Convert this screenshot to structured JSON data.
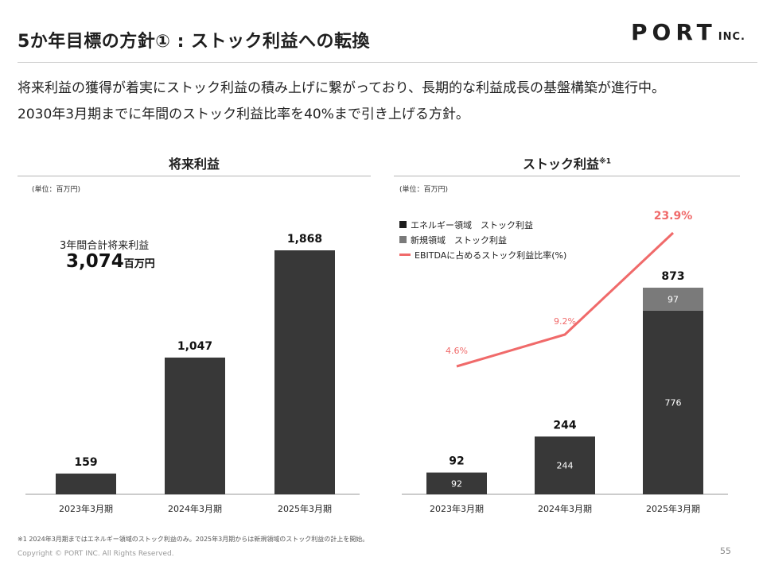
{
  "header": {
    "title": "5か年目標の方針① : ストック利益への転換",
    "logo_main": "PORT",
    "logo_sub": "INC."
  },
  "lead": {
    "line1": "将来利益の獲得が着実にストック利益の積み上げに繋がっており、長期的な利益成長の基盤構築が進行中。",
    "line2": "2030年3月期までに年間のストック利益比率を40%まで引き上げる方針。"
  },
  "left_section": {
    "title": "将来利益",
    "unit": "(単位：百万円)",
    "total_label": "3年間合計将来利益",
    "total_value": "3,074",
    "total_unit": "百万円"
  },
  "right_section": {
    "title": "ストック利益",
    "title_note": "※1",
    "unit": "(単位：百万円)",
    "legend": [
      {
        "label": "エネルギー領域　ストック利益",
        "color": "#1e1e1e",
        "kind": "box"
      },
      {
        "label": "新規領域　ストック利益",
        "color": "#7a7a7a",
        "kind": "box"
      },
      {
        "label": "EBITDAに占めるストック利益比率(%)",
        "color": "#f06a6a",
        "kind": "line"
      }
    ]
  },
  "chart_data": [
    {
      "type": "bar",
      "title": "将来利益",
      "categories": [
        "2023年3月期",
        "2024年3月期",
        "2025年3月期"
      ],
      "values": [
        159,
        1047,
        1868
      ],
      "value_labels": [
        "159",
        "1,047",
        "1,868"
      ],
      "ylim": [
        0,
        2000
      ],
      "colors": {
        "bar": "#383838"
      }
    },
    {
      "type": "bar",
      "stacked": true,
      "title": "ストック利益",
      "categories": [
        "2023年3月期",
        "2024年3月期",
        "2025年3月期"
      ],
      "series": [
        {
          "name": "エネルギー領域　ストック利益",
          "values": [
            92,
            244,
            776
          ],
          "color": "#383838"
        },
        {
          "name": "新規領域　ストック利益",
          "values": [
            0,
            0,
            97
          ],
          "color": "#7a7a7a"
        }
      ],
      "totals": [
        "92",
        "244",
        "873"
      ],
      "line_series": {
        "name": "EBITDAに占めるストック利益比率(%)",
        "values": [
          4.6,
          9.2,
          23.9
        ],
        "labels": [
          "4.6%",
          "9.2%",
          "23.9%"
        ],
        "color": "#f06a6a"
      },
      "ylim": [
        0,
        1000
      ]
    }
  ],
  "footer": {
    "footnote": "※1 2024年3月期まではエネルギー領域のストック利益のみ。2025年3月期からは新規領域のストック利益の計上を開始。",
    "copyright": "Copyright © PORT INC. All Rights Reserved.",
    "page_number": "55"
  }
}
